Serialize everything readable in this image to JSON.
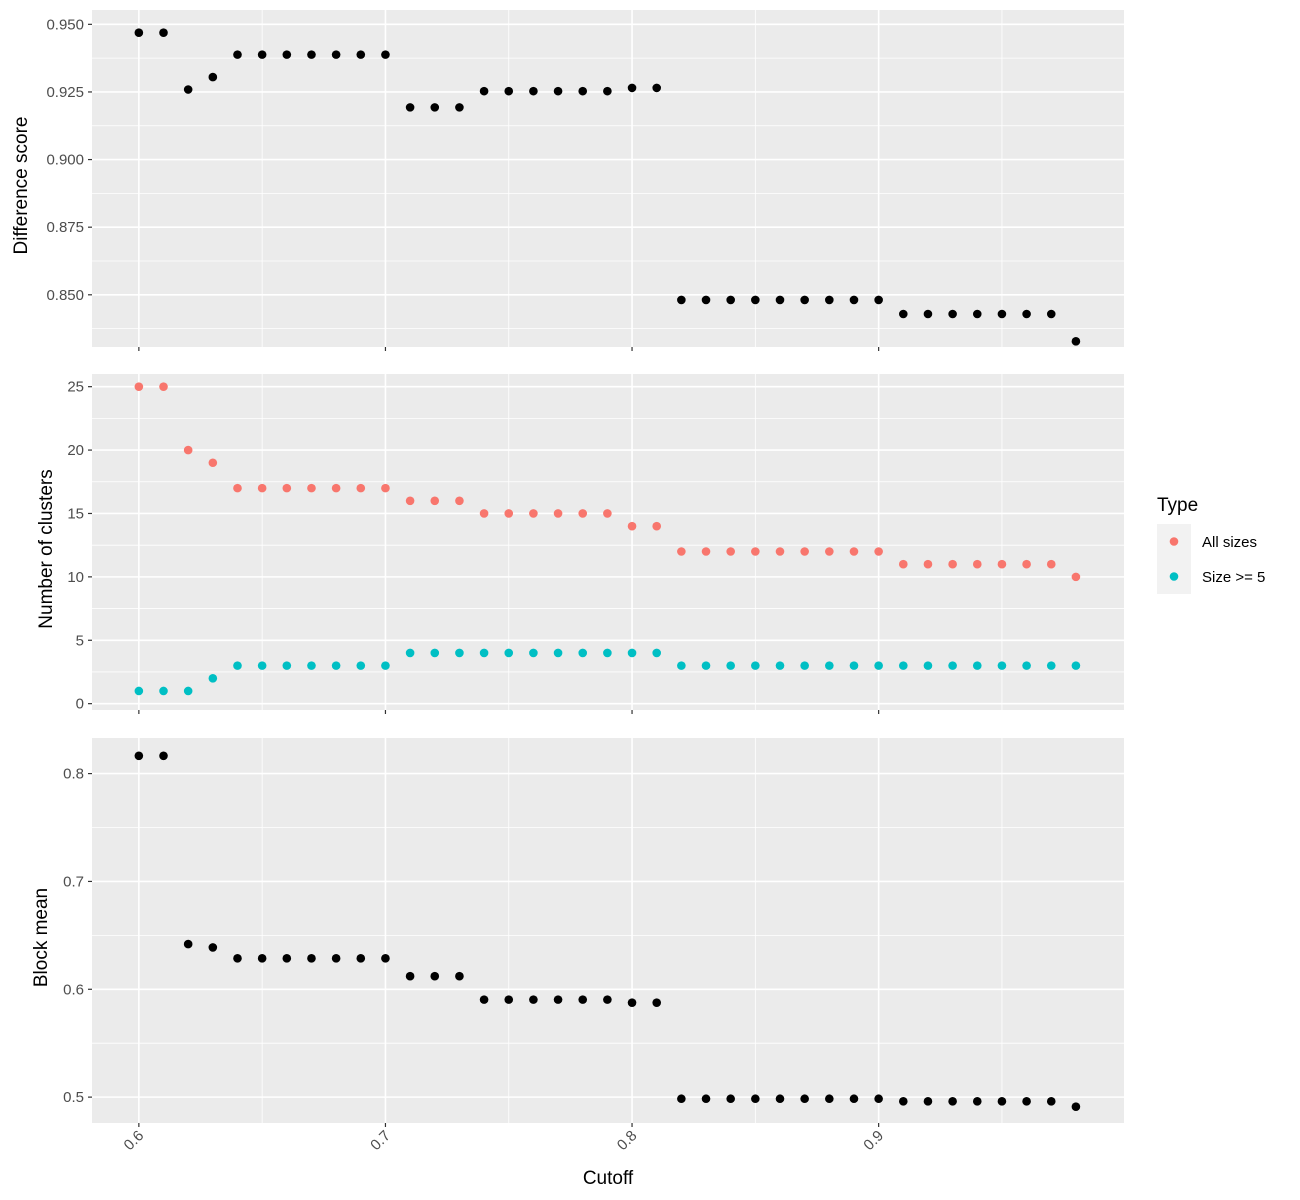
{
  "chart_data": {
    "type": "scatter",
    "xlabel": "Cutoff",
    "x_ticks": [
      "0.6",
      "0.7",
      "0.8",
      "0.9"
    ],
    "x_tick_values": [
      0.6,
      0.7,
      0.8,
      0.9
    ],
    "xlim": [
      0.581,
      0.9995
    ],
    "x": [
      0.6,
      0.61,
      0.62,
      0.63,
      0.64,
      0.65,
      0.66,
      0.67,
      0.68,
      0.69,
      0.7,
      0.71,
      0.72,
      0.73,
      0.74,
      0.75,
      0.76,
      0.77,
      0.78,
      0.79,
      0.8,
      0.81,
      0.82,
      0.83,
      0.84,
      0.85,
      0.86,
      0.87,
      0.88,
      0.89,
      0.9,
      0.91,
      0.92,
      0.93,
      0.94,
      0.95,
      0.96,
      0.97,
      0.98
    ],
    "panels": [
      {
        "ylabel": "Difference score",
        "y_ticks": [
          "0.850",
          "0.875",
          "0.900",
          "0.925",
          "0.950"
        ],
        "y_tick_values": [
          0.85,
          0.875,
          0.9,
          0.925,
          0.95
        ],
        "ylim": [
          0.8307,
          0.9553
        ],
        "series": [
          {
            "color": "#000000",
            "values": [
              0.9469,
              0.9469,
              0.9259,
              0.9305,
              0.9388,
              0.9388,
              0.9388,
              0.9388,
              0.9388,
              0.9388,
              0.9388,
              0.9193,
              0.9193,
              0.9193,
              0.9253,
              0.9253,
              0.9253,
              0.9253,
              0.9253,
              0.9253,
              0.9265,
              0.9265,
              0.8481,
              0.8481,
              0.8481,
              0.8481,
              0.8481,
              0.8481,
              0.8481,
              0.8481,
              0.8481,
              0.8429,
              0.8429,
              0.8429,
              0.8429,
              0.8429,
              0.8429,
              0.8429,
              0.8328
            ]
          }
        ]
      },
      {
        "ylabel": "Number of clusters",
        "y_ticks": [
          "0",
          "5",
          "10",
          "15",
          "20",
          "25"
        ],
        "y_tick_values": [
          0,
          5,
          10,
          15,
          20,
          25
        ],
        "ylim": [
          -0.5,
          26.0
        ],
        "series": [
          {
            "name": "All sizes",
            "color": "#F8766D",
            "values": [
              25,
              25,
              20,
              19,
              17,
              17,
              17,
              17,
              17,
              17,
              17,
              16,
              16,
              16,
              15,
              15,
              15,
              15,
              15,
              15,
              14,
              14,
              12,
              12,
              12,
              12,
              12,
              12,
              12,
              12,
              12,
              11,
              11,
              11,
              11,
              11,
              11,
              11,
              10
            ]
          },
          {
            "name": "Size >= 5",
            "color": "#00BFC4",
            "values": [
              1,
              1,
              1,
              2,
              3,
              3,
              3,
              3,
              3,
              3,
              3,
              4,
              4,
              4,
              4,
              4,
              4,
              4,
              4,
              4,
              4,
              4,
              3,
              3,
              3,
              3,
              3,
              3,
              3,
              3,
              3,
              3,
              3,
              3,
              3,
              3,
              3,
              3,
              3
            ]
          }
        ]
      },
      {
        "ylabel": "Block mean",
        "y_ticks": [
          "0.5",
          "0.6",
          "0.7",
          "0.8"
        ],
        "y_tick_values": [
          0.5,
          0.6,
          0.7,
          0.8
        ],
        "ylim": [
          0.476,
          0.833
        ],
        "series": [
          {
            "color": "#000000",
            "values": [
              0.8165,
              0.8165,
              0.6419,
              0.6388,
              0.6287,
              0.6287,
              0.6287,
              0.6287,
              0.6287,
              0.6287,
              0.6287,
              0.6121,
              0.6121,
              0.6121,
              0.5904,
              0.5904,
              0.5904,
              0.5904,
              0.5904,
              0.5904,
              0.5876,
              0.5876,
              0.4985,
              0.4985,
              0.4985,
              0.4985,
              0.4985,
              0.4985,
              0.4985,
              0.4985,
              0.4985,
              0.4961,
              0.4961,
              0.4961,
              0.4961,
              0.4961,
              0.4961,
              0.4961,
              0.4911
            ]
          }
        ]
      }
    ],
    "legend": {
      "title": "Type",
      "position": "right",
      "items": [
        {
          "label": "All sizes",
          "color": "#F8766D"
        },
        {
          "label": "Size >= 5",
          "color": "#00BFC4"
        }
      ]
    },
    "grid": true,
    "background": "#EBEBEB"
  }
}
